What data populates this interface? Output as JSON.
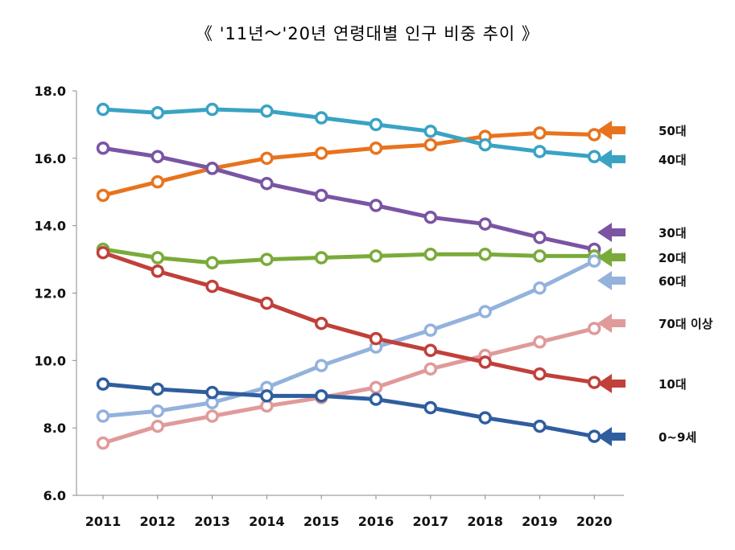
{
  "chart_data": {
    "type": "line",
    "title": "《 '11년～'20년 연령대별 인구 비중 추이 》",
    "xlabel": "",
    "ylabel": "",
    "ylim": [
      6.0,
      18.0
    ],
    "yticks": [
      "6.0",
      "8.0",
      "10.0",
      "12.0",
      "14.0",
      "16.0",
      "18.0"
    ],
    "categories": [
      "2011",
      "2012",
      "2013",
      "2014",
      "2015",
      "2016",
      "2017",
      "2018",
      "2019",
      "2020"
    ],
    "grid": false,
    "legend_placement": "right",
    "series": [
      {
        "name": "50대",
        "color": "#e8731e",
        "values": [
          14.9,
          15.3,
          15.7,
          16.0,
          16.15,
          16.3,
          16.4,
          16.65,
          16.75,
          16.7
        ]
      },
      {
        "name": "40대",
        "color": "#3aa3c3",
        "values": [
          17.45,
          17.35,
          17.45,
          17.4,
          17.2,
          17.0,
          16.8,
          16.4,
          16.2,
          16.05
        ]
      },
      {
        "name": "30대",
        "color": "#7a55a3",
        "values": [
          16.3,
          16.05,
          15.7,
          15.25,
          14.9,
          14.6,
          14.25,
          14.05,
          13.65,
          13.3
        ]
      },
      {
        "name": "20대",
        "color": "#7aab3a",
        "values": [
          13.3,
          13.05,
          12.9,
          13.0,
          13.05,
          13.1,
          13.15,
          13.15,
          13.1,
          13.1
        ]
      },
      {
        "name": "60대",
        "color": "#93b2dc",
        "values": [
          8.35,
          8.5,
          8.75,
          9.2,
          9.85,
          10.4,
          10.9,
          11.45,
          12.15,
          12.95
        ]
      },
      {
        "name": "70대 이상",
        "color": "#e09a9a",
        "values": [
          7.55,
          8.05,
          8.35,
          8.65,
          8.9,
          9.2,
          9.75,
          10.15,
          10.55,
          10.95
        ]
      },
      {
        "name": "10대",
        "color": "#c0403a",
        "values": [
          13.2,
          12.65,
          12.2,
          11.7,
          11.1,
          10.65,
          10.3,
          9.95,
          9.6,
          9.35
        ]
      },
      {
        "name": "0~9세",
        "color": "#2f5e9e",
        "values": [
          9.3,
          9.15,
          9.05,
          8.95,
          8.95,
          8.85,
          8.6,
          8.3,
          8.05,
          7.75
        ]
      }
    ]
  }
}
